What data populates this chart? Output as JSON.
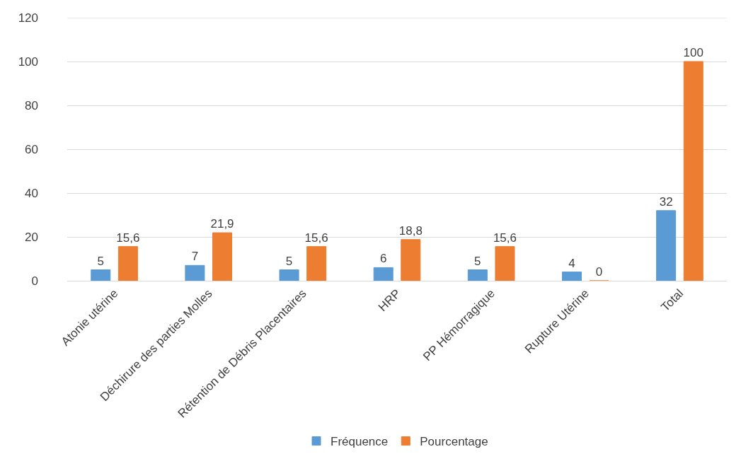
{
  "chart_data": {
    "type": "bar",
    "categories": [
      "Atonie utérine",
      "Déchirure des parties Molles",
      "Rétention de Débris Placentaires",
      "HRP",
      "PP Hémorragique",
      "Rupture Utérine",
      "Total"
    ],
    "series": [
      {
        "name": "Fréquence",
        "color": "#5b9bd5",
        "values": [
          5,
          7,
          5,
          6,
          5,
          4,
          32
        ],
        "value_labels": [
          "5",
          "7",
          "5",
          "6",
          "5",
          "4",
          "32"
        ]
      },
      {
        "name": "Pourcentage",
        "color": "#ed7d31",
        "values": [
          15.6,
          21.9,
          15.6,
          18.8,
          15.6,
          0,
          100
        ],
        "value_labels": [
          "15,6",
          "21,9",
          "15,6",
          "18,8",
          "15,6",
          "0",
          "100"
        ]
      }
    ],
    "ylim": [
      0,
      120
    ],
    "yticks": [
      0,
      20,
      40,
      60,
      80,
      100,
      120
    ],
    "grid": "y",
    "legend": "bottom"
  }
}
